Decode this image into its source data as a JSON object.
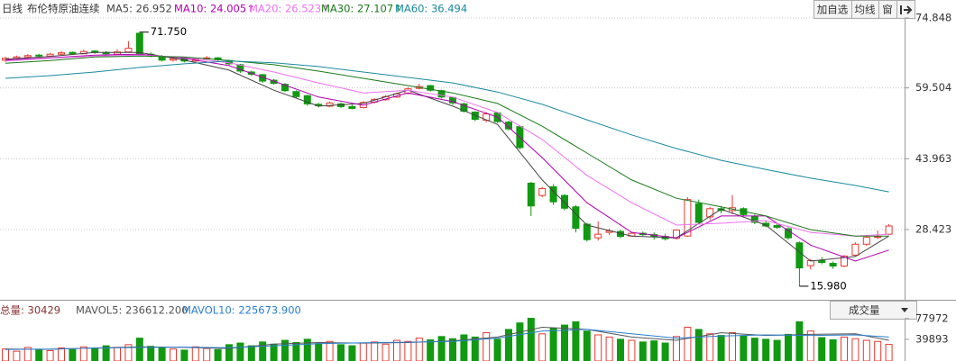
{
  "header": {
    "period": "日线",
    "symbol": "布伦特原油连续",
    "buttons": [
      "加自选",
      "均线",
      "窗"
    ]
  },
  "chart_data": [
    {
      "type": "candlestick",
      "up_color": "#e8382f",
      "down_color": "#119911",
      "ylim": [
        13.2,
        78.8
      ],
      "yticks": [
        74.848,
        59.504,
        43.963,
        28.423
      ],
      "grid": true,
      "candles": [
        [
          65.6,
          66.3,
          65.2,
          66.0
        ],
        [
          66.0,
          66.6,
          65.7,
          66.3
        ],
        [
          66.3,
          66.9,
          66.0,
          66.6
        ],
        [
          66.7,
          67.0,
          66.2,
          66.5
        ],
        [
          66.5,
          67.2,
          66.3,
          66.9
        ],
        [
          66.9,
          67.6,
          66.7,
          67.2
        ],
        [
          67.3,
          67.5,
          66.8,
          67.0
        ],
        [
          67.0,
          67.9,
          66.9,
          67.5
        ],
        [
          67.6,
          67.8,
          67.0,
          67.3
        ],
        [
          67.3,
          67.6,
          66.7,
          67.0
        ],
        [
          66.9,
          68.0,
          66.8,
          67.4
        ],
        [
          67.4,
          69.8,
          67.2,
          68.2
        ],
        [
          71.5,
          71.75,
          66.6,
          66.9
        ],
        [
          66.9,
          67.3,
          66.2,
          66.5
        ],
        [
          66.4,
          66.7,
          65.3,
          65.6
        ],
        [
          65.6,
          66.2,
          65.3,
          65.9
        ],
        [
          65.9,
          66.1,
          65.1,
          65.4
        ],
        [
          65.4,
          66.0,
          65.2,
          65.8
        ],
        [
          65.9,
          66.5,
          65.7,
          66.1
        ],
        [
          66.1,
          66.3,
          65.4,
          65.7
        ],
        [
          65.5,
          65.7,
          64.5,
          64.8
        ],
        [
          64.6,
          64.8,
          62.8,
          63.2
        ],
        [
          63.0,
          63.3,
          62.1,
          62.5
        ],
        [
          62.4,
          62.6,
          60.6,
          61.0
        ],
        [
          61.2,
          61.5,
          60.2,
          60.5
        ],
        [
          60.3,
          60.6,
          58.6,
          58.9
        ],
        [
          58.7,
          59.0,
          57.2,
          57.6
        ],
        [
          57.8,
          58.0,
          55.6,
          56.0
        ],
        [
          55.9,
          56.2,
          55.2,
          55.6
        ],
        [
          55.5,
          56.5,
          55.3,
          56.2
        ],
        [
          56.0,
          56.3,
          55.1,
          55.4
        ],
        [
          55.4,
          55.8,
          54.8,
          55.0
        ],
        [
          55.2,
          56.6,
          55.0,
          56.3
        ],
        [
          56.4,
          57.2,
          56.1,
          57.0
        ],
        [
          56.9,
          57.9,
          56.7,
          57.6
        ],
        [
          57.5,
          58.5,
          57.3,
          58.2
        ],
        [
          58.3,
          59.6,
          58.1,
          59.3
        ],
        [
          59.4,
          60.4,
          59.2,
          59.8
        ],
        [
          60.0,
          60.2,
          58.7,
          59.0
        ],
        [
          58.9,
          59.1,
          57.2,
          57.5
        ],
        [
          57.4,
          57.6,
          55.8,
          56.2
        ],
        [
          56.0,
          56.3,
          54.1,
          54.4
        ],
        [
          54.2,
          54.4,
          52.2,
          52.6
        ],
        [
          52.4,
          54.2,
          52.0,
          53.8
        ],
        [
          54.0,
          54.3,
          51.8,
          52.1
        ],
        [
          52.0,
          52.3,
          50.1,
          50.5
        ],
        [
          51.0,
          51.3,
          46.0,
          46.4
        ],
        [
          38.6,
          38.9,
          31.4,
          33.6
        ],
        [
          35.9,
          37.8,
          35.5,
          37.4
        ],
        [
          37.8,
          38.4,
          33.8,
          34.5
        ],
        [
          35.9,
          36.2,
          32.6,
          33.1
        ],
        [
          33.4,
          33.8,
          27.8,
          28.7
        ],
        [
          29.6,
          29.9,
          25.8,
          26.2
        ],
        [
          26.6,
          30.2,
          26.0,
          27.4
        ],
        [
          27.8,
          28.6,
          27.2,
          28.1
        ],
        [
          28.0,
          28.4,
          26.5,
          26.9
        ],
        [
          27.0,
          27.9,
          26.8,
          27.6
        ],
        [
          27.6,
          28.0,
          27.0,
          27.3
        ],
        [
          27.3,
          27.8,
          26.2,
          26.9
        ],
        [
          26.9,
          27.5,
          26.0,
          26.4
        ],
        [
          26.5,
          28.5,
          26.2,
          28.3
        ],
        [
          27.0,
          35.5,
          26.8,
          35.0
        ],
        [
          34.1,
          35.0,
          29.5,
          30.0
        ],
        [
          31.2,
          33.4,
          30.5,
          33.0
        ],
        [
          33.0,
          33.6,
          32.0,
          32.6
        ],
        [
          32.6,
          36.0,
          31.8,
          33.2
        ],
        [
          33.0,
          33.3,
          31.4,
          31.7
        ],
        [
          31.3,
          31.7,
          29.6,
          30.0
        ],
        [
          29.8,
          30.3,
          28.9,
          29.2
        ],
        [
          29.3,
          29.6,
          28.6,
          28.9
        ],
        [
          28.6,
          28.9,
          26.2,
          26.6
        ],
        [
          25.5,
          25.8,
          15.98,
          20.0
        ],
        [
          20.5,
          22.0,
          19.7,
          21.6
        ],
        [
          21.6,
          22.4,
          20.8,
          21.2
        ],
        [
          21.0,
          21.4,
          19.8,
          20.4
        ],
        [
          20.4,
          22.8,
          20.2,
          22.6
        ],
        [
          22.8,
          25.6,
          22.6,
          25.2
        ],
        [
          25.2,
          26.9,
          24.8,
          26.7
        ],
        [
          26.7,
          28.2,
          26.3,
          26.9
        ],
        [
          27.4,
          29.6,
          27.2,
          29.2
        ]
      ],
      "ma_x": [
        0,
        4,
        8,
        12,
        16,
        20,
        24,
        28,
        32,
        36,
        40,
        44,
        48,
        52,
        56,
        60,
        64,
        68,
        72,
        76,
        79
      ],
      "series": [
        {
          "name": "MA5: 26.952",
          "color": "#444444",
          "values": [
            65.8,
            66.4,
            67.3,
            67.3,
            65.6,
            63.4,
            59.0,
            55.5,
            56.1,
            59.0,
            55.5,
            51.5,
            39.3,
            29.4,
            27.0,
            26.6,
            32.9,
            29.4,
            21.5,
            22.5,
            27.0
          ]
        },
        {
          "name": "MA10: 24.005↑",
          "color": "#b000b0",
          "values": [
            65.6,
            66.1,
            66.7,
            66.9,
            66.0,
            64.4,
            61.0,
            57.5,
            55.7,
            58.4,
            56.5,
            53.1,
            44.2,
            34.3,
            27.8,
            26.6,
            31.4,
            31.4,
            25.0,
            21.5,
            23.9
          ]
        },
        {
          "name": "MA20: 26.523↑",
          "color": "#f070f0",
          "values": [
            65.4,
            66.0,
            66.5,
            66.7,
            66.2,
            65.0,
            63.0,
            60.6,
            58.4,
            59.0,
            57.5,
            54.1,
            48.2,
            40.3,
            34.3,
            29.4,
            29.8,
            30.4,
            27.8,
            27.0,
            27.4
          ]
        },
        {
          "name": "MA30: 27.107↑",
          "color": "#1a7a1a",
          "values": [
            64.9,
            65.5,
            66.3,
            66.5,
            66.3,
            65.5,
            64.6,
            63.2,
            61.6,
            60.0,
            58.4,
            56.1,
            51.1,
            45.2,
            39.3,
            35.3,
            33.4,
            31.4,
            28.4,
            27.0,
            27.0
          ]
        },
        {
          "name": "MA60: 36.494",
          "color": "#1a8aa0",
          "values": [
            61.6,
            62.2,
            63.0,
            64.0,
            64.8,
            65.4,
            65.0,
            64.2,
            63.0,
            61.8,
            60.6,
            58.6,
            55.9,
            52.5,
            49.2,
            46.2,
            43.6,
            41.6,
            39.7,
            38.1,
            36.7
          ]
        }
      ],
      "annotations": [
        {
          "label": "71.750",
          "value": 71.75
        },
        {
          "label": "15.980",
          "value": 15.98
        }
      ]
    },
    {
      "type": "bar",
      "title": "总量: 30429",
      "dropdown": "成交量",
      "ylim": [
        0,
        91000
      ],
      "yticks": [
        77972,
        39893
      ],
      "values": [
        22000,
        18000,
        25000,
        20000,
        19000,
        24000,
        21000,
        26000,
        23000,
        28000,
        25000,
        30000,
        42000,
        27000,
        24000,
        22000,
        20000,
        26000,
        23000,
        21000,
        30000,
        33000,
        28000,
        35000,
        31000,
        38000,
        34000,
        40000,
        32000,
        36000,
        30000,
        28000,
        33000,
        35000,
        31000,
        38000,
        36000,
        42000,
        39000,
        45000,
        41000,
        48000,
        44000,
        52000,
        40000,
        58000,
        70000,
        78500,
        50000,
        60000,
        66000,
        72000,
        55000,
        48000,
        44000,
        40000,
        38000,
        35000,
        37000,
        33000,
        45000,
        62000,
        58000,
        50000,
        47000,
        52000,
        46000,
        42000,
        40000,
        38000,
        49000,
        72000,
        55000,
        43000,
        39000,
        44000,
        41000,
        38000,
        36000,
        30429
      ],
      "ma_x": [
        0,
        4,
        8,
        12,
        16,
        20,
        24,
        28,
        32,
        36,
        40,
        44,
        48,
        52,
        56,
        60,
        64,
        68,
        72,
        76,
        79
      ],
      "series": [
        {
          "name": "MAVOL5: 236612.200",
          "color": "#555555",
          "values": [
            22000,
            21500,
            24000,
            26000,
            25000,
            23000,
            31000,
            34000,
            33000,
            34000,
            37000,
            44000,
            62000,
            58000,
            44000,
            38000,
            52000,
            47000,
            49000,
            50000,
            38000
          ]
        },
        {
          "name": "MAVOL10: 225673.900",
          "color": "#2a7fd0",
          "values": [
            21000,
            22000,
            23500,
            25000,
            25500,
            24500,
            28000,
            32000,
            33500,
            34500,
            36000,
            42000,
            55000,
            58000,
            50000,
            42000,
            46000,
            48000,
            47000,
            48000,
            44000
          ]
        }
      ]
    }
  ]
}
